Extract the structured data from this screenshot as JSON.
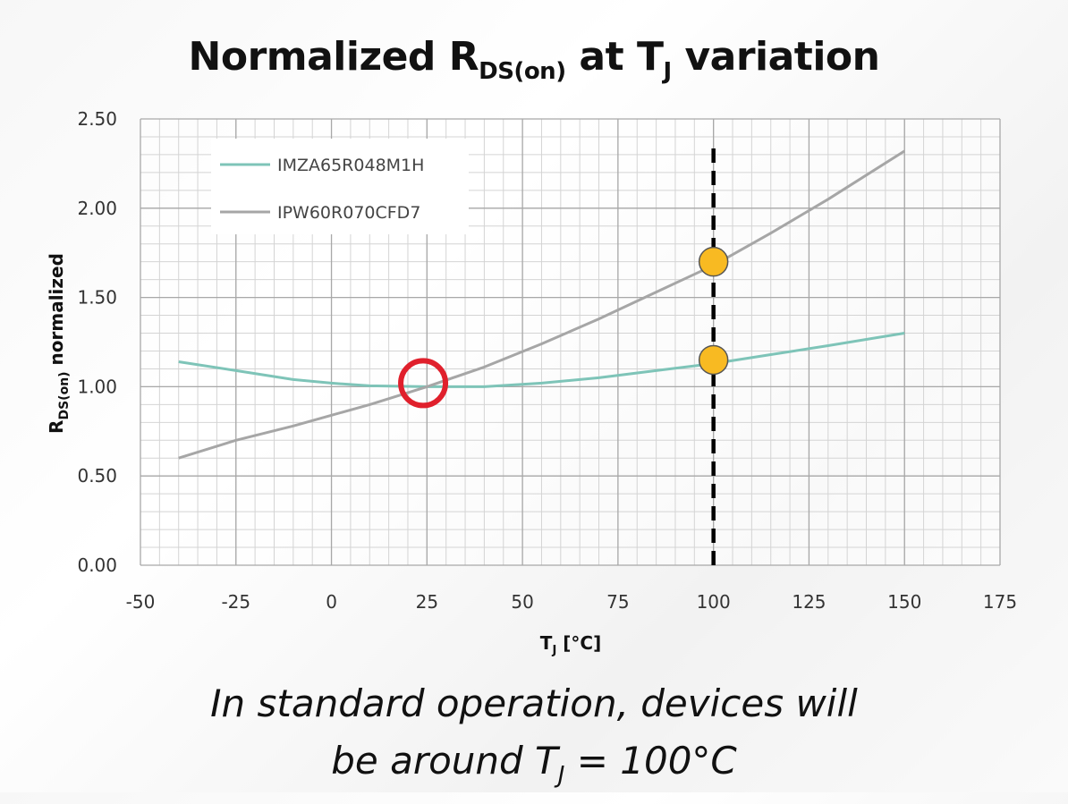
{
  "title": {
    "prefix": "Normalized R",
    "sub1": "DS(on)",
    "mid": " at T",
    "sub2": "J",
    "suffix": " variation"
  },
  "chart_data": {
    "type": "line",
    "xlabel": "T",
    "xlabel_sub": "J",
    "xlabel_suffix": " [°C]",
    "ylabel": "R",
    "ylabel_sub": "DS(on)",
    "ylabel_suffix": " normalized",
    "xlim": [
      -50,
      175
    ],
    "ylim": [
      0,
      2.5
    ],
    "xticks": [
      "-50",
      "-25",
      "0",
      "25",
      "50",
      "75",
      "100",
      "125",
      "150",
      "175"
    ],
    "yticks": [
      "0.00",
      "0.50",
      "1.00",
      "1.50",
      "2.00",
      "2.50"
    ],
    "grid": true,
    "legend_position": "top-left",
    "series": [
      {
        "name": "IMZA65R048M1H",
        "color": "#7ec4b8",
        "x": [
          -40,
          -25,
          -10,
          0,
          10,
          25,
          40,
          55,
          70,
          85,
          100,
          115,
          130,
          150
        ],
        "y": [
          1.14,
          1.09,
          1.04,
          1.02,
          1.005,
          1.0,
          1.0,
          1.02,
          1.05,
          1.09,
          1.13,
          1.18,
          1.23,
          1.3
        ]
      },
      {
        "name": "IPW60R070CFD7",
        "color": "#a6a6a6",
        "x": [
          -40,
          -25,
          -10,
          0,
          10,
          25,
          40,
          55,
          70,
          85,
          100,
          115,
          130,
          150
        ],
        "y": [
          0.6,
          0.7,
          0.78,
          0.84,
          0.9,
          1.0,
          1.11,
          1.24,
          1.38,
          1.53,
          1.68,
          1.86,
          2.05,
          2.32
        ]
      }
    ],
    "annotations": {
      "vline_x": 100,
      "marker_color": "#f8ba22",
      "circle_color": "#e0202c",
      "points": [
        {
          "x": 100,
          "y": 1.7
        },
        {
          "x": 100,
          "y": 1.15
        }
      ],
      "intersection": {
        "x": 24,
        "y": 1.02
      }
    }
  },
  "caption": {
    "line1": "In standard operation, devices will",
    "line2_prefix": "be around T",
    "line2_sub": "J",
    "line2_suffix": " = 100°C"
  }
}
